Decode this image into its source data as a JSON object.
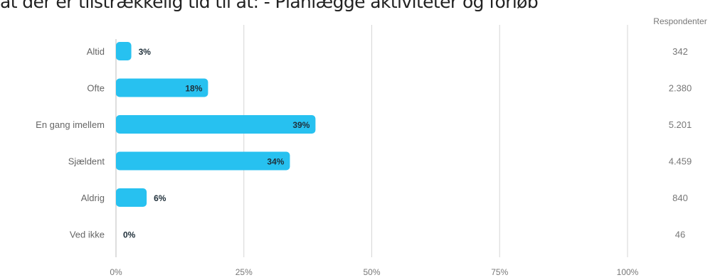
{
  "title": "at der er tilstrækkelig tid til at: - Planlægge aktiviteter og forløb",
  "chart_data": {
    "type": "bar",
    "orientation": "horizontal",
    "title": "at der er tilstrækkelig tid til at: - Planlægge aktiviteter og forløb",
    "categories": [
      "Altid",
      "Ofte",
      "En gang imellem",
      "Sjældent",
      "Aldrig",
      "Ved ikke"
    ],
    "values": [
      3,
      18,
      39,
      34,
      6,
      0
    ],
    "value_labels": [
      "3%",
      "18%",
      "39%",
      "34%",
      "6%",
      "0%"
    ],
    "xlim": [
      0,
      100
    ],
    "ticks": [
      0,
      25,
      50,
      75,
      100
    ],
    "tick_labels": [
      "0%",
      "25%",
      "50%",
      "75%",
      "100%"
    ],
    "grid": true,
    "respondents_header": "Respondenter",
    "respondents": [
      "342",
      "2.380",
      "5.201",
      "4.459",
      "840",
      "46"
    ],
    "colors": {
      "bar": "#27c1f0",
      "grid": "#d6d6d6",
      "text": "#666666",
      "value_label": "#1f2f3a"
    }
  }
}
